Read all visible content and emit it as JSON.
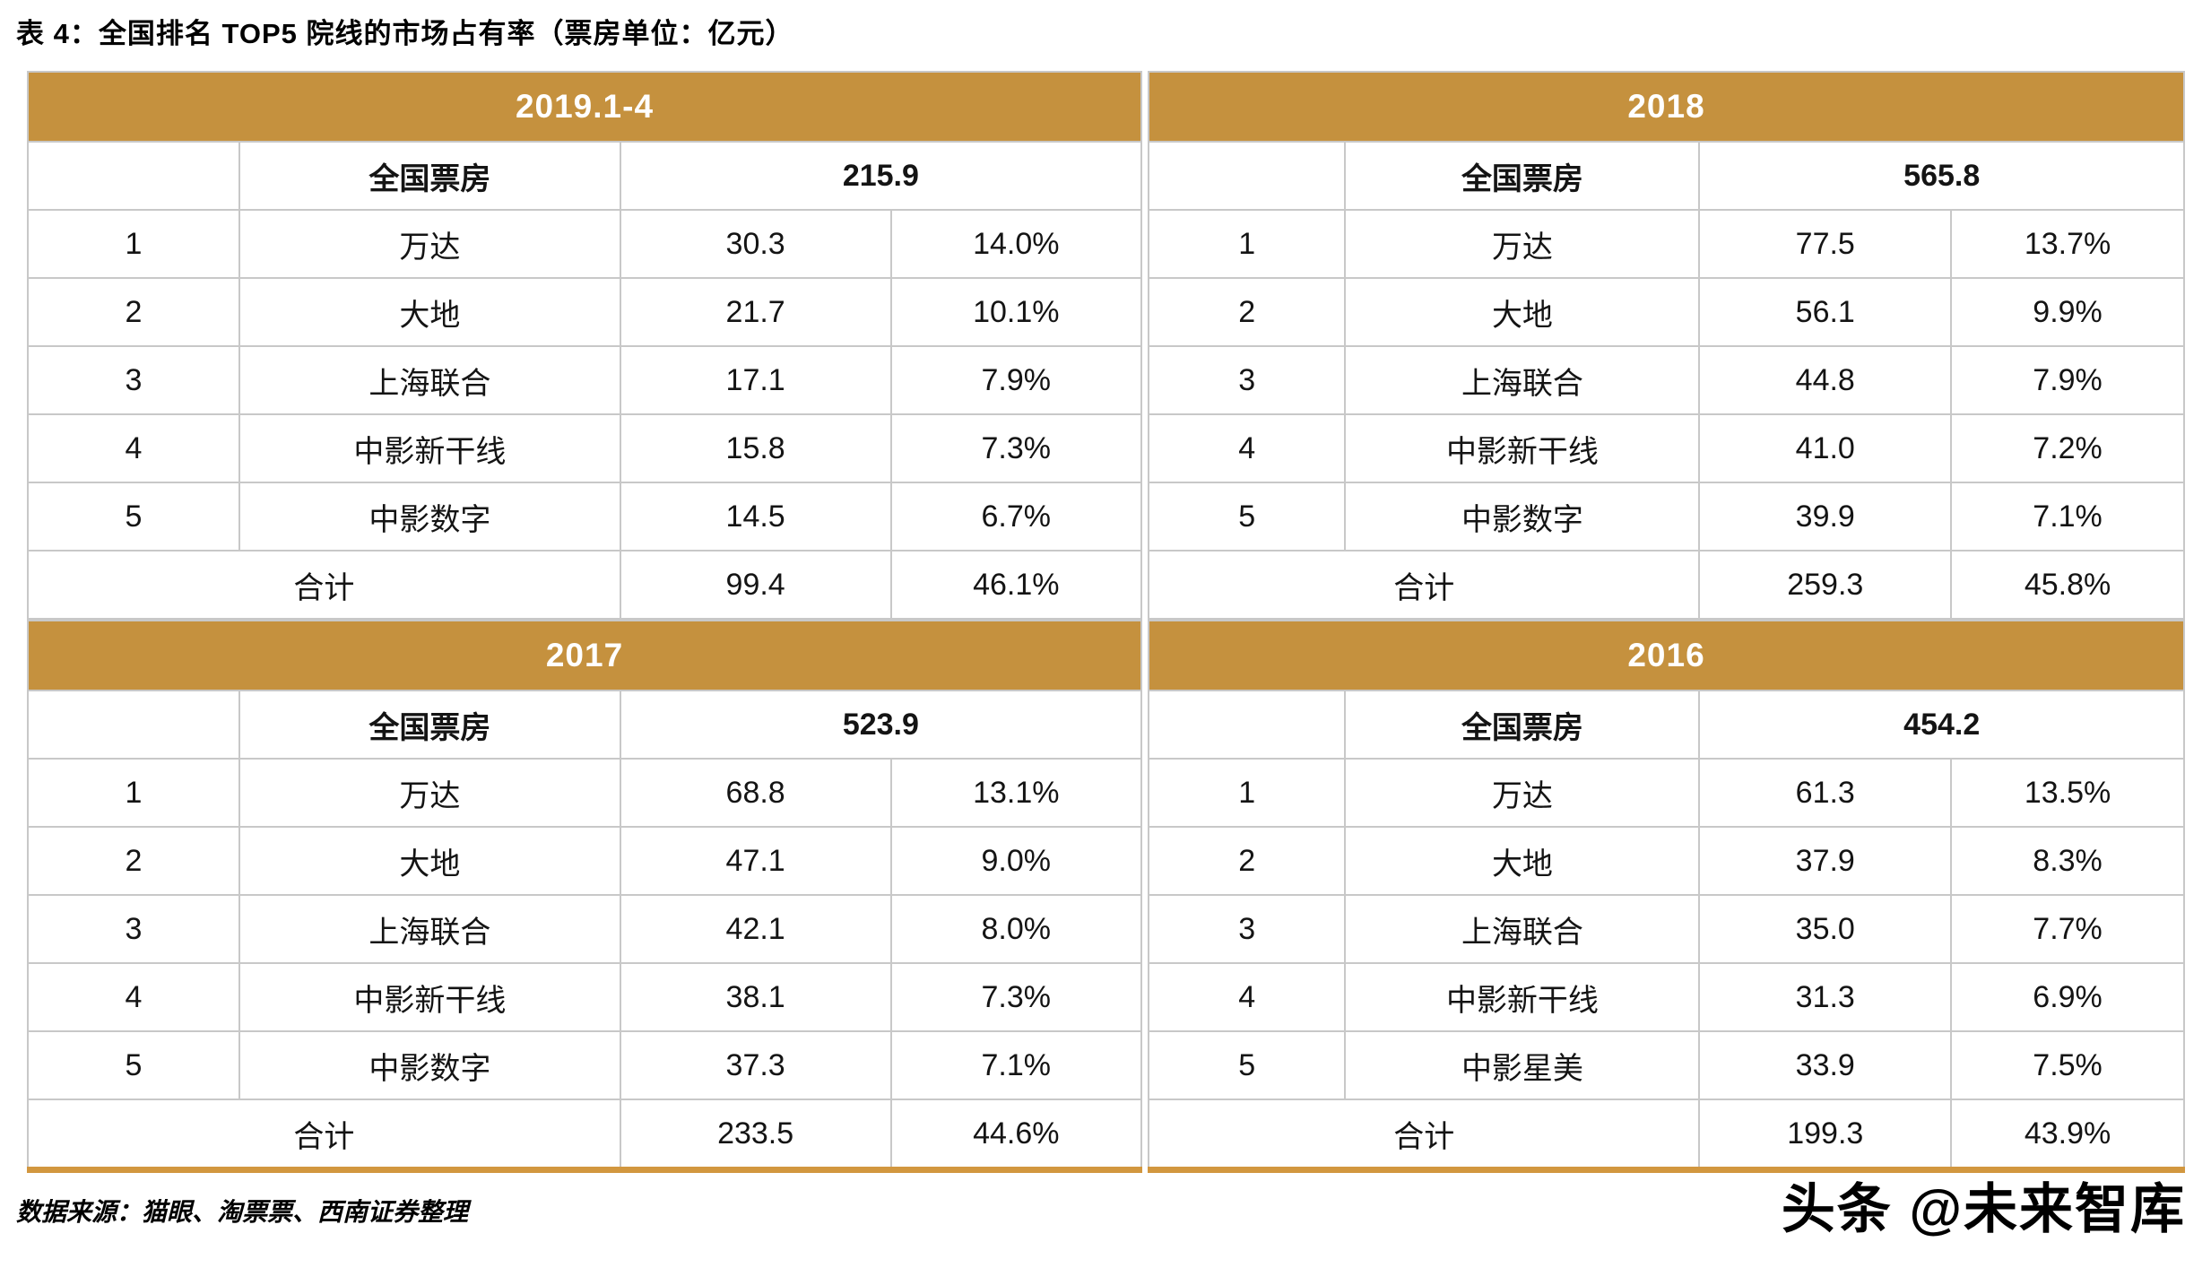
{
  "page": {
    "title": "表 4：全国排名 TOP5 院线的市场占有率（票房单位：亿元）",
    "source_note": "数据来源：猫眼、淘票票、西南证券整理",
    "watermark": "头条 @未来智库"
  },
  "labels": {
    "national_box_office": "全国票房",
    "total": "合计"
  },
  "colors": {
    "header_gold": "#C5913E",
    "border_gray": "#C8C8C8",
    "bottom_gold": "#D2973F"
  },
  "tables": [
    {
      "period": "2019.1-4",
      "national_total": "215.9",
      "rows": [
        [
          "1",
          "万达",
          "30.3",
          "14.0%"
        ],
        [
          "2",
          "大地",
          "21.7",
          "10.1%"
        ],
        [
          "3",
          "上海联合",
          "17.1",
          "7.9%"
        ],
        [
          "4",
          "中影新干线",
          "15.8",
          "7.3%"
        ],
        [
          "5",
          "中影数字",
          "14.5",
          "6.7%"
        ]
      ],
      "total": [
        "99.4",
        "46.1%"
      ]
    },
    {
      "period": "2018",
      "national_total": "565.8",
      "rows": [
        [
          "1",
          "万达",
          "77.5",
          "13.7%"
        ],
        [
          "2",
          "大地",
          "56.1",
          "9.9%"
        ],
        [
          "3",
          "上海联合",
          "44.8",
          "7.9%"
        ],
        [
          "4",
          "中影新干线",
          "41.0",
          "7.2%"
        ],
        [
          "5",
          "中影数字",
          "39.9",
          "7.1%"
        ]
      ],
      "total": [
        "259.3",
        "45.8%"
      ]
    },
    {
      "period": "2017",
      "national_total": "523.9",
      "rows": [
        [
          "1",
          "万达",
          "68.8",
          "13.1%"
        ],
        [
          "2",
          "大地",
          "47.1",
          "9.0%"
        ],
        [
          "3",
          "上海联合",
          "42.1",
          "8.0%"
        ],
        [
          "4",
          "中影新干线",
          "38.1",
          "7.3%"
        ],
        [
          "5",
          "中影数字",
          "37.3",
          "7.1%"
        ]
      ],
      "total": [
        "233.5",
        "44.6%"
      ]
    },
    {
      "period": "2016",
      "national_total": "454.2",
      "rows": [
        [
          "1",
          "万达",
          "61.3",
          "13.5%"
        ],
        [
          "2",
          "大地",
          "37.9",
          "8.3%"
        ],
        [
          "3",
          "上海联合",
          "35.0",
          "7.7%"
        ],
        [
          "4",
          "中影新干线",
          "31.3",
          "6.9%"
        ],
        [
          "5",
          "中影星美",
          "33.9",
          "7.5%"
        ]
      ],
      "total": [
        "199.3",
        "43.9%"
      ]
    }
  ]
}
